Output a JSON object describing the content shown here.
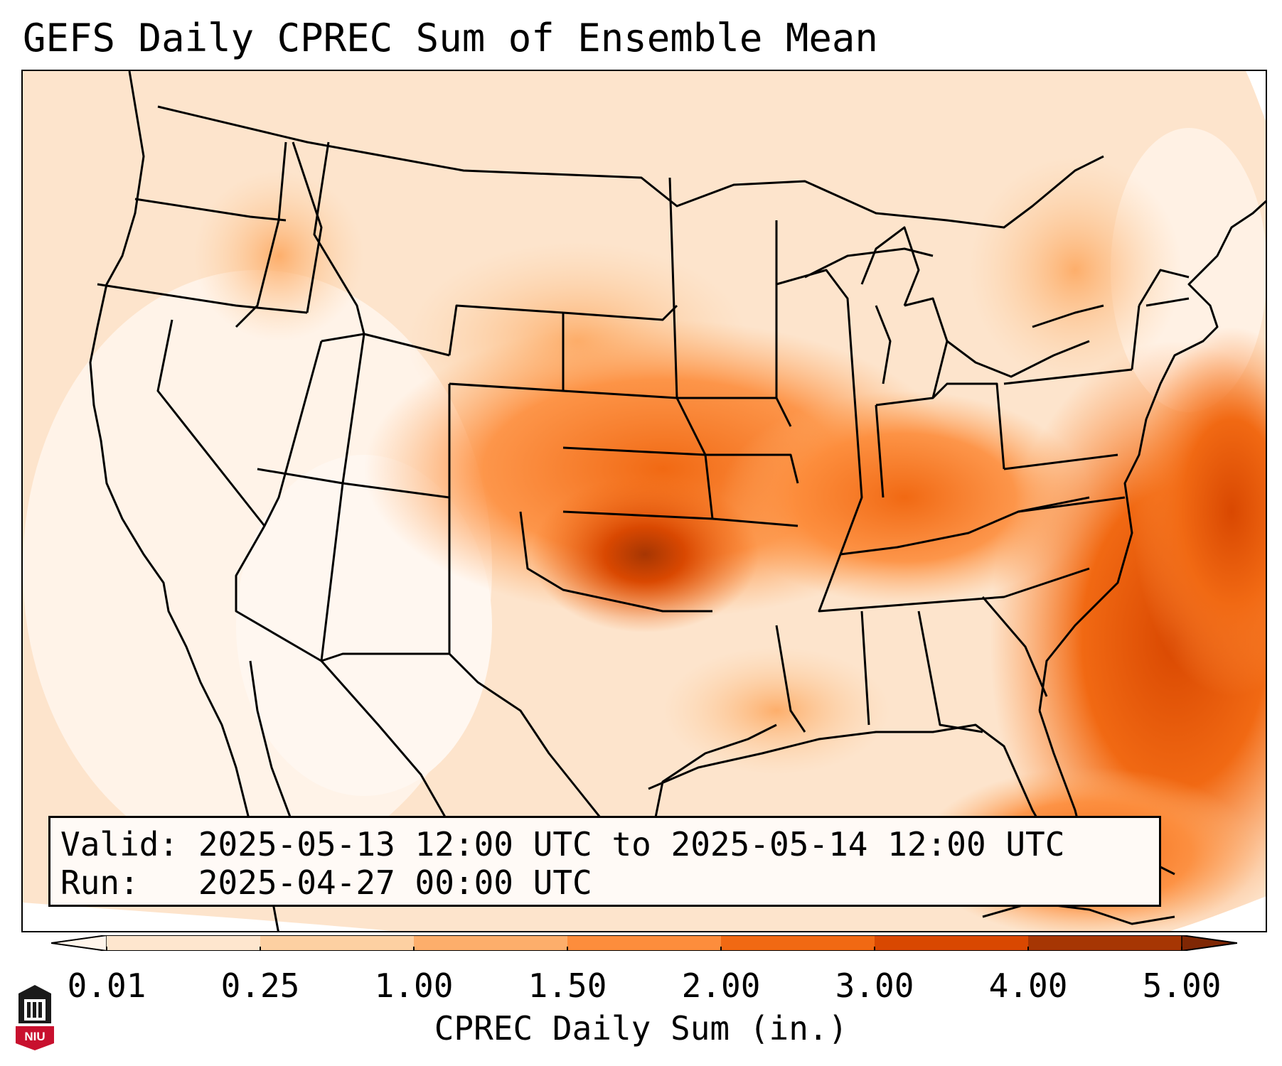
{
  "title": "GEFS Daily CPREC Sum of Ensemble Mean",
  "info": {
    "valid_line": "Valid: 2025-05-13 12:00 UTC to 2025-05-14 12:00 UTC",
    "run_line": "Run:   2025-04-27 00:00 UTC"
  },
  "colorbar": {
    "label": "CPREC Daily Sum (in.)",
    "ticks": [
      "0.01",
      "0.25",
      "1.00",
      "1.50",
      "2.00",
      "3.00",
      "4.00",
      "5.00"
    ],
    "colors": [
      "#fff5eb",
      "#fee6ce",
      "#fdd0a2",
      "#fdae6b",
      "#fd8d3c",
      "#f16913",
      "#d94801",
      "#a63603",
      "#7f2704"
    ]
  },
  "logo": {
    "text": "NIU",
    "color": "#c8102e"
  },
  "map_icons": {
    "region": "conus-map"
  }
}
